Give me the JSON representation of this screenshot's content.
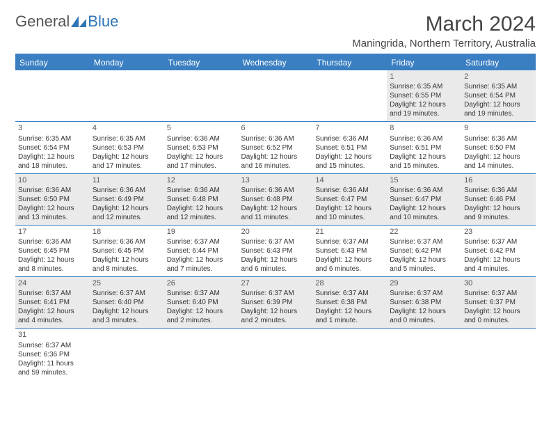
{
  "logo": {
    "text1": "General",
    "text2": "Blue"
  },
  "title": "March 2024",
  "location": "Maningrida, Northern Territory, Australia",
  "colors": {
    "header_bg": "#3a7fc2",
    "header_text": "#ffffff",
    "alt_row": "#eaeaea",
    "border": "#3a7fc2"
  },
  "dayHeaders": [
    "Sunday",
    "Monday",
    "Tuesday",
    "Wednesday",
    "Thursday",
    "Friday",
    "Saturday"
  ],
  "weeks": [
    [
      null,
      null,
      null,
      null,
      null,
      {
        "n": "1",
        "sr": "Sunrise: 6:35 AM",
        "ss": "Sunset: 6:55 PM",
        "d1": "Daylight: 12 hours",
        "d2": "and 19 minutes."
      },
      {
        "n": "2",
        "sr": "Sunrise: 6:35 AM",
        "ss": "Sunset: 6:54 PM",
        "d1": "Daylight: 12 hours",
        "d2": "and 19 minutes."
      }
    ],
    [
      {
        "n": "3",
        "sr": "Sunrise: 6:35 AM",
        "ss": "Sunset: 6:54 PM",
        "d1": "Daylight: 12 hours",
        "d2": "and 18 minutes."
      },
      {
        "n": "4",
        "sr": "Sunrise: 6:35 AM",
        "ss": "Sunset: 6:53 PM",
        "d1": "Daylight: 12 hours",
        "d2": "and 17 minutes."
      },
      {
        "n": "5",
        "sr": "Sunrise: 6:36 AM",
        "ss": "Sunset: 6:53 PM",
        "d1": "Daylight: 12 hours",
        "d2": "and 17 minutes."
      },
      {
        "n": "6",
        "sr": "Sunrise: 6:36 AM",
        "ss": "Sunset: 6:52 PM",
        "d1": "Daylight: 12 hours",
        "d2": "and 16 minutes."
      },
      {
        "n": "7",
        "sr": "Sunrise: 6:36 AM",
        "ss": "Sunset: 6:51 PM",
        "d1": "Daylight: 12 hours",
        "d2": "and 15 minutes."
      },
      {
        "n": "8",
        "sr": "Sunrise: 6:36 AM",
        "ss": "Sunset: 6:51 PM",
        "d1": "Daylight: 12 hours",
        "d2": "and 15 minutes."
      },
      {
        "n": "9",
        "sr": "Sunrise: 6:36 AM",
        "ss": "Sunset: 6:50 PM",
        "d1": "Daylight: 12 hours",
        "d2": "and 14 minutes."
      }
    ],
    [
      {
        "n": "10",
        "sr": "Sunrise: 6:36 AM",
        "ss": "Sunset: 6:50 PM",
        "d1": "Daylight: 12 hours",
        "d2": "and 13 minutes."
      },
      {
        "n": "11",
        "sr": "Sunrise: 6:36 AM",
        "ss": "Sunset: 6:49 PM",
        "d1": "Daylight: 12 hours",
        "d2": "and 12 minutes."
      },
      {
        "n": "12",
        "sr": "Sunrise: 6:36 AM",
        "ss": "Sunset: 6:48 PM",
        "d1": "Daylight: 12 hours",
        "d2": "and 12 minutes."
      },
      {
        "n": "13",
        "sr": "Sunrise: 6:36 AM",
        "ss": "Sunset: 6:48 PM",
        "d1": "Daylight: 12 hours",
        "d2": "and 11 minutes."
      },
      {
        "n": "14",
        "sr": "Sunrise: 6:36 AM",
        "ss": "Sunset: 6:47 PM",
        "d1": "Daylight: 12 hours",
        "d2": "and 10 minutes."
      },
      {
        "n": "15",
        "sr": "Sunrise: 6:36 AM",
        "ss": "Sunset: 6:47 PM",
        "d1": "Daylight: 12 hours",
        "d2": "and 10 minutes."
      },
      {
        "n": "16",
        "sr": "Sunrise: 6:36 AM",
        "ss": "Sunset: 6:46 PM",
        "d1": "Daylight: 12 hours",
        "d2": "and 9 minutes."
      }
    ],
    [
      {
        "n": "17",
        "sr": "Sunrise: 6:36 AM",
        "ss": "Sunset: 6:45 PM",
        "d1": "Daylight: 12 hours",
        "d2": "and 8 minutes."
      },
      {
        "n": "18",
        "sr": "Sunrise: 6:36 AM",
        "ss": "Sunset: 6:45 PM",
        "d1": "Daylight: 12 hours",
        "d2": "and 8 minutes."
      },
      {
        "n": "19",
        "sr": "Sunrise: 6:37 AM",
        "ss": "Sunset: 6:44 PM",
        "d1": "Daylight: 12 hours",
        "d2": "and 7 minutes."
      },
      {
        "n": "20",
        "sr": "Sunrise: 6:37 AM",
        "ss": "Sunset: 6:43 PM",
        "d1": "Daylight: 12 hours",
        "d2": "and 6 minutes."
      },
      {
        "n": "21",
        "sr": "Sunrise: 6:37 AM",
        "ss": "Sunset: 6:43 PM",
        "d1": "Daylight: 12 hours",
        "d2": "and 6 minutes."
      },
      {
        "n": "22",
        "sr": "Sunrise: 6:37 AM",
        "ss": "Sunset: 6:42 PM",
        "d1": "Daylight: 12 hours",
        "d2": "and 5 minutes."
      },
      {
        "n": "23",
        "sr": "Sunrise: 6:37 AM",
        "ss": "Sunset: 6:42 PM",
        "d1": "Daylight: 12 hours",
        "d2": "and 4 minutes."
      }
    ],
    [
      {
        "n": "24",
        "sr": "Sunrise: 6:37 AM",
        "ss": "Sunset: 6:41 PM",
        "d1": "Daylight: 12 hours",
        "d2": "and 4 minutes."
      },
      {
        "n": "25",
        "sr": "Sunrise: 6:37 AM",
        "ss": "Sunset: 6:40 PM",
        "d1": "Daylight: 12 hours",
        "d2": "and 3 minutes."
      },
      {
        "n": "26",
        "sr": "Sunrise: 6:37 AM",
        "ss": "Sunset: 6:40 PM",
        "d1": "Daylight: 12 hours",
        "d2": "and 2 minutes."
      },
      {
        "n": "27",
        "sr": "Sunrise: 6:37 AM",
        "ss": "Sunset: 6:39 PM",
        "d1": "Daylight: 12 hours",
        "d2": "and 2 minutes."
      },
      {
        "n": "28",
        "sr": "Sunrise: 6:37 AM",
        "ss": "Sunset: 6:38 PM",
        "d1": "Daylight: 12 hours",
        "d2": "and 1 minute."
      },
      {
        "n": "29",
        "sr": "Sunrise: 6:37 AM",
        "ss": "Sunset: 6:38 PM",
        "d1": "Daylight: 12 hours",
        "d2": "and 0 minutes."
      },
      {
        "n": "30",
        "sr": "Sunrise: 6:37 AM",
        "ss": "Sunset: 6:37 PM",
        "d1": "Daylight: 12 hours",
        "d2": "and 0 minutes."
      }
    ],
    [
      {
        "n": "31",
        "sr": "Sunrise: 6:37 AM",
        "ss": "Sunset: 6:36 PM",
        "d1": "Daylight: 11 hours",
        "d2": "and 59 minutes."
      },
      null,
      null,
      null,
      null,
      null,
      null
    ]
  ]
}
